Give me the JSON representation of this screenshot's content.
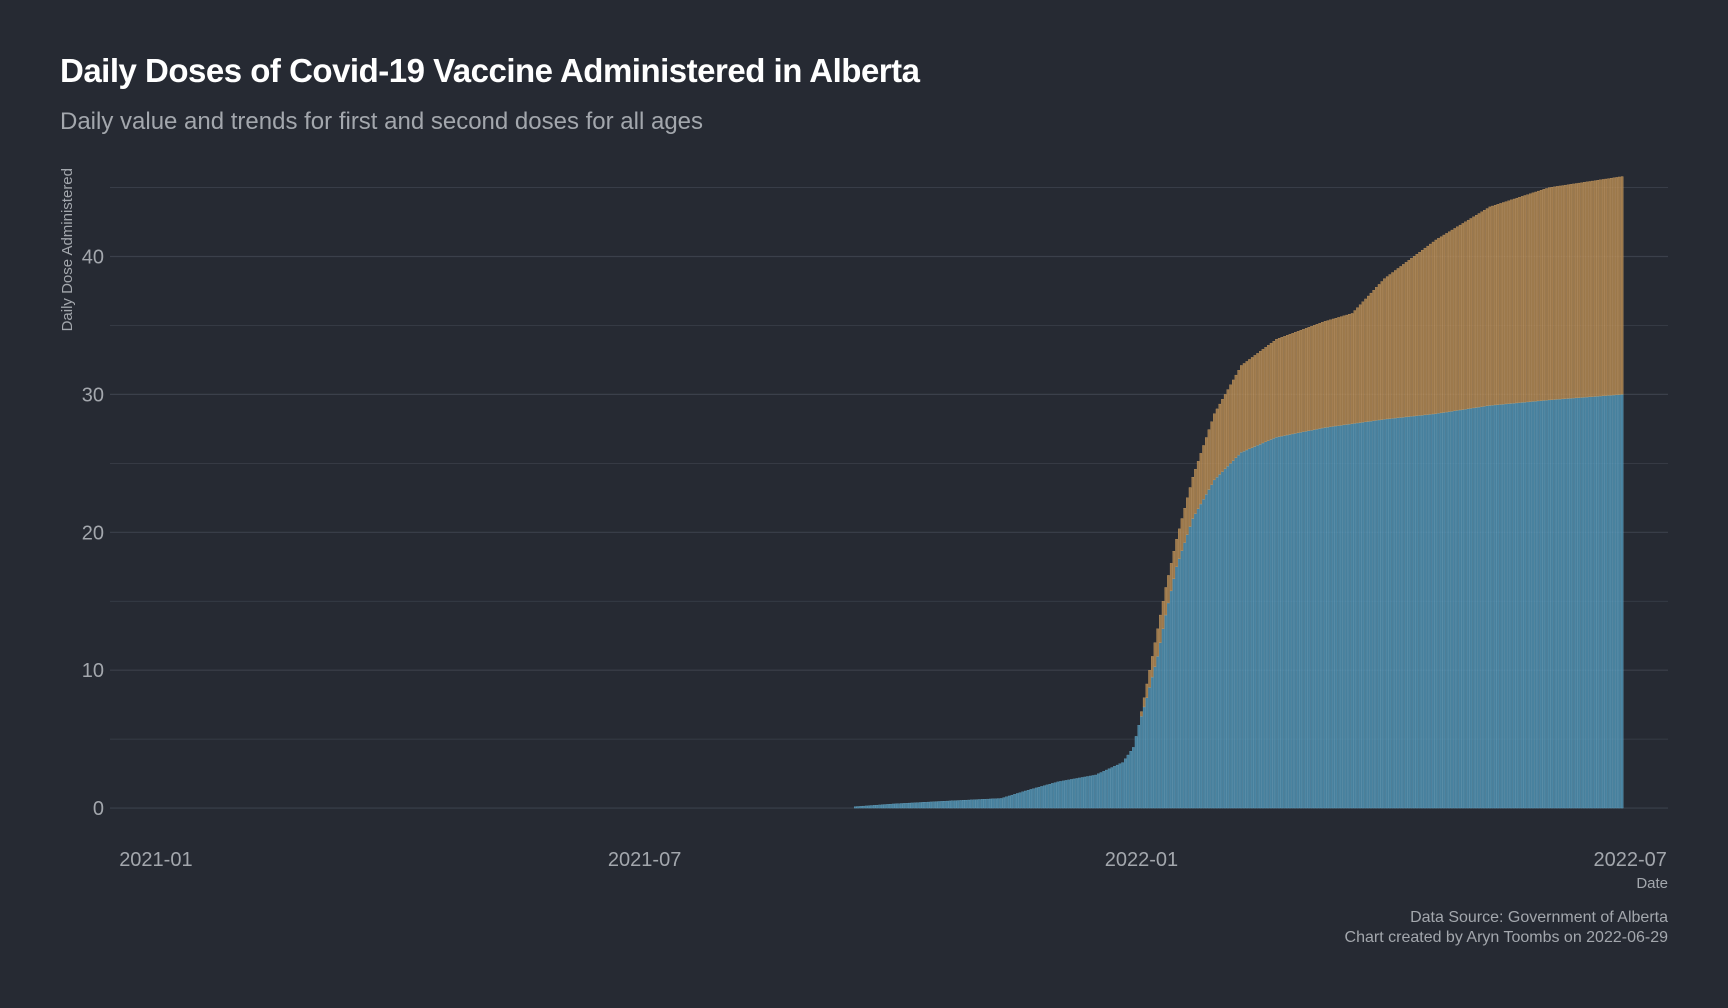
{
  "title": "Daily Doses of Covid-19 Vaccine Administered in Alberta",
  "subtitle": "Daily value and trends for first and second doses for all ages",
  "caption": {
    "source": "Data Source: Government of Alberta",
    "credit": "Chart created by Aryn Toombs on 2022-06-29"
  },
  "colors": {
    "background": "#262a33",
    "grid": "#3b404b",
    "text": "#a3a7ad",
    "first_dose": "#4d8fb0",
    "second_dose": "#b08650"
  },
  "chart_data": {
    "type": "bar",
    "stacked": true,
    "xlabel": "Date",
    "ylabel": "Daily Dose Administered",
    "xlim": [
      "2020-12-15",
      "2022-07-15"
    ],
    "ylim": [
      -1.3,
      47
    ],
    "x_ticks": [
      "2021-01",
      "2021-07",
      "2022-01",
      "2022-07"
    ],
    "y_ticks": [
      0,
      10,
      20,
      30,
      40
    ],
    "grid": true,
    "legend": "none",
    "date_range": [
      "2021-09-17",
      "2022-06-28"
    ],
    "series": [
      {
        "key": "first",
        "color": "#4d8fb0",
        "points": [
          [
            "2021-09-17",
            0.1
          ],
          [
            "2021-10-01",
            0.3
          ],
          [
            "2021-10-20",
            0.5
          ],
          [
            "2021-11-10",
            0.7
          ],
          [
            "2021-11-20",
            1.3
          ],
          [
            "2021-12-01",
            1.9
          ],
          [
            "2021-12-15",
            2.4
          ],
          [
            "2021-12-25",
            3.3
          ],
          [
            "2021-12-29",
            4.4
          ],
          [
            "2021-12-31",
            6.0
          ],
          [
            "2022-01-03",
            8.0
          ],
          [
            "2022-01-07",
            11.0
          ],
          [
            "2022-01-10",
            14.0
          ],
          [
            "2022-01-14",
            17.5
          ],
          [
            "2022-01-20",
            21.0
          ],
          [
            "2022-01-28",
            23.8
          ],
          [
            "2022-02-07",
            25.8
          ],
          [
            "2022-02-20",
            26.9
          ],
          [
            "2022-03-10",
            27.6
          ],
          [
            "2022-04-01",
            28.2
          ],
          [
            "2022-04-20",
            28.6
          ],
          [
            "2022-05-10",
            29.2
          ],
          [
            "2022-06-01",
            29.6
          ],
          [
            "2022-06-28",
            30.0
          ]
        ]
      },
      {
        "key": "second",
        "color": "#b08650",
        "points": [
          [
            "2021-09-17",
            0.0
          ],
          [
            "2021-11-10",
            0.0
          ],
          [
            "2021-12-31",
            0.0
          ],
          [
            "2022-01-03",
            1.0
          ],
          [
            "2022-01-07",
            2.0
          ],
          [
            "2022-01-10",
            2.0
          ],
          [
            "2022-01-14",
            2.0
          ],
          [
            "2022-01-20",
            3.0
          ],
          [
            "2022-01-28",
            4.8
          ],
          [
            "2022-02-07",
            6.3
          ],
          [
            "2022-02-20",
            7.1
          ],
          [
            "2022-03-10",
            7.7
          ],
          [
            "2022-03-20",
            8.0
          ],
          [
            "2022-04-01",
            10.2
          ],
          [
            "2022-04-20",
            12.6
          ],
          [
            "2022-05-10",
            14.4
          ],
          [
            "2022-06-01",
            15.4
          ],
          [
            "2022-06-28",
            15.8
          ]
        ]
      }
    ]
  }
}
